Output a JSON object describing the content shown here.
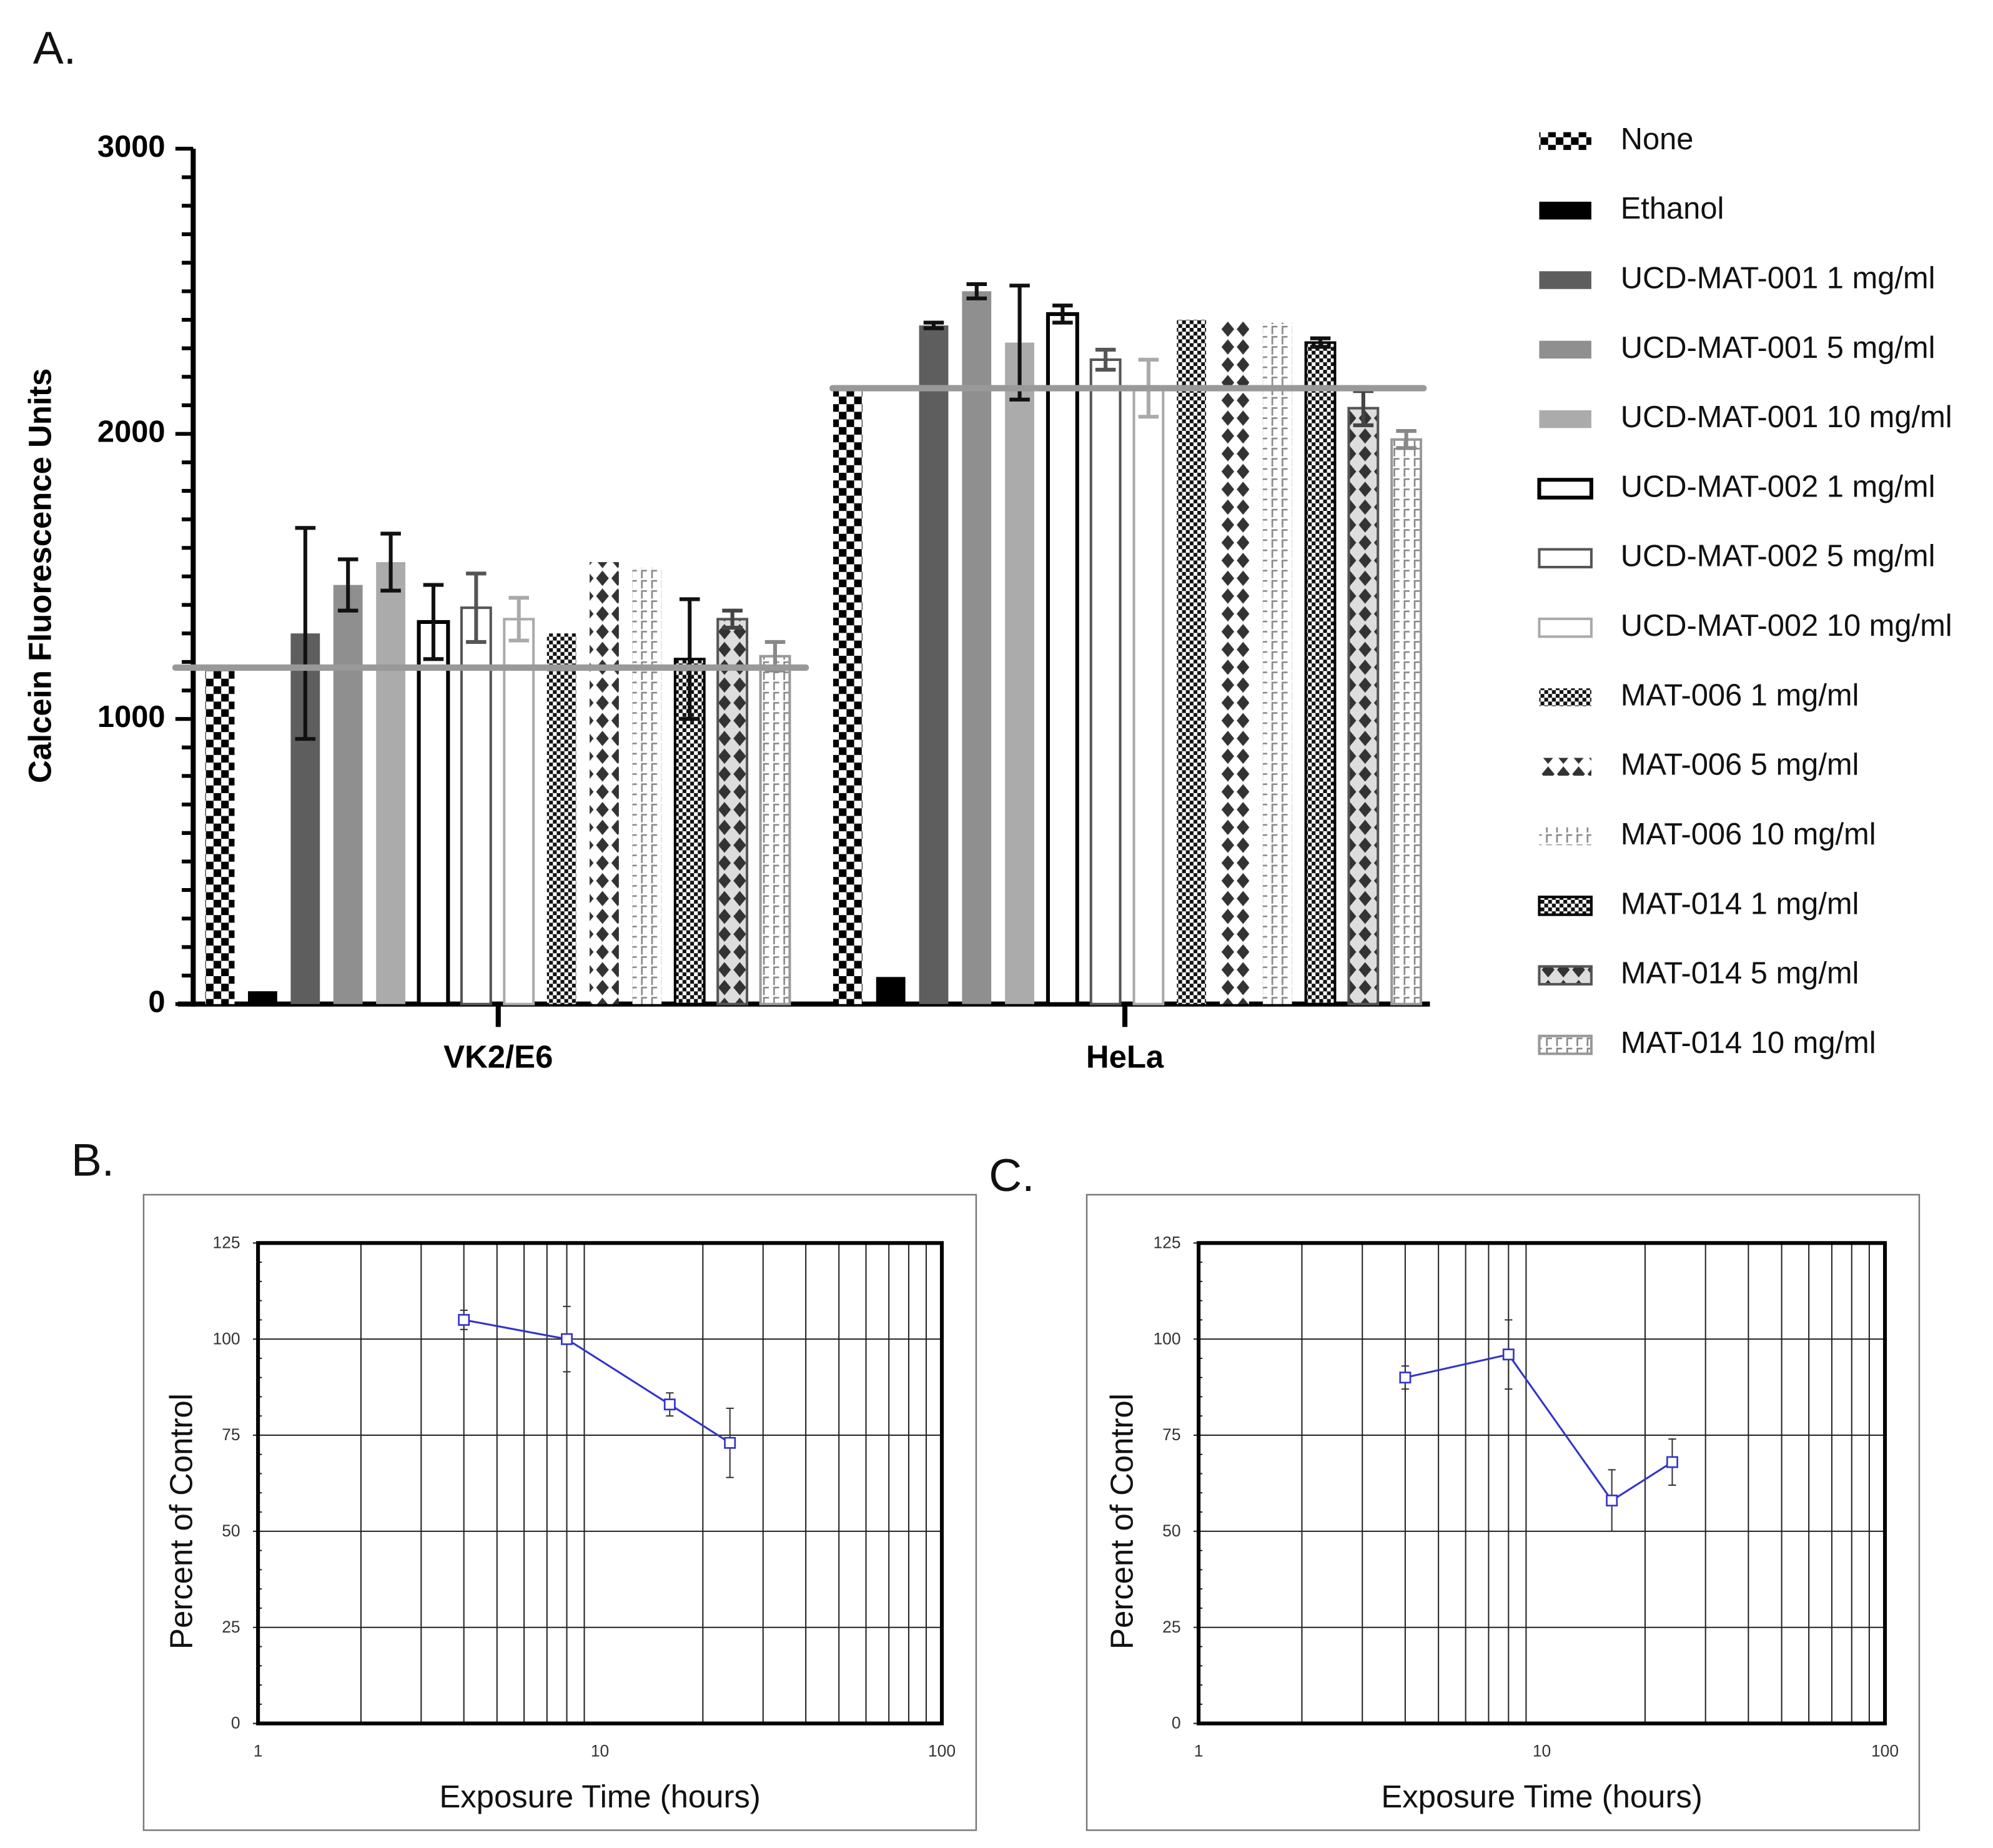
{
  "chart_data": [
    {
      "type": "bar",
      "panel_label": "A.",
      "title": "",
      "ylabel": "Calcein Fluorescence Units",
      "xlabel": "",
      "ylim": [
        0,
        3000
      ],
      "yticks": [
        "0",
        "1000",
        "2000",
        "3000"
      ],
      "categories": [
        "VK2/E6",
        "HeLa"
      ],
      "legend_position": "right",
      "series": [
        {
          "name": "None",
          "values": [
            1190,
            2150
          ],
          "errors": [
            0,
            0
          ],
          "color": "#000000",
          "pattern": "checker"
        },
        {
          "name": "Ethanol",
          "values": [
            45,
            95
          ],
          "errors": [
            0,
            0
          ],
          "color": "#000000",
          "pattern": "solid"
        },
        {
          "name": "UCD-MAT-001 1 mg/ml",
          "values": [
            1300,
            2380
          ],
          "errors": [
            370,
            10
          ],
          "color": "#5e5e5e",
          "pattern": "solid"
        },
        {
          "name": "UCD-MAT-001 5 mg/ml",
          "values": [
            1470,
            2500
          ],
          "errors": [
            90,
            25
          ],
          "color": "#8f8f8f",
          "pattern": "solid"
        },
        {
          "name": "UCD-MAT-001 10 mg/ml",
          "values": [
            1550,
            2320
          ],
          "errors": [
            100,
            200
          ],
          "color": "#ababab",
          "pattern": "solid"
        },
        {
          "name": "UCD-MAT-002 1 mg/ml",
          "values": [
            1340,
            2420
          ],
          "errors": [
            130,
            30
          ],
          "color": "#000000",
          "pattern": "outline"
        },
        {
          "name": "UCD-MAT-002 5 mg/ml",
          "values": [
            1390,
            2260
          ],
          "errors": [
            120,
            35
          ],
          "color": "#555555",
          "pattern": "outline"
        },
        {
          "name": "UCD-MAT-002 10 mg/ml",
          "values": [
            1350,
            2160
          ],
          "errors": [
            75,
            100
          ],
          "color": "#aaaaaa",
          "pattern": "outline"
        },
        {
          "name": "MAT-006 1 mg/ml",
          "values": [
            1300,
            2400
          ],
          "errors": [
            0,
            0
          ],
          "color": "#000000",
          "pattern": "finecheck"
        },
        {
          "name": "MAT-006 5 mg/ml",
          "values": [
            1550,
            2400
          ],
          "errors": [
            0,
            0
          ],
          "color": "#333333",
          "pattern": "diamond"
        },
        {
          "name": "MAT-006 10 mg/ml",
          "values": [
            1530,
            2390
          ],
          "errors": [
            0,
            0
          ],
          "color": "#888888",
          "pattern": "brick"
        },
        {
          "name": "MAT-014 1 mg/ml",
          "values": [
            1210,
            2320
          ],
          "errors": [
            210,
            15
          ],
          "color": "#000000",
          "pattern": "finecheck-outline"
        },
        {
          "name": "MAT-014 5 mg/ml",
          "values": [
            1350,
            2090
          ],
          "errors": [
            30,
            60
          ],
          "color": "#444444",
          "pattern": "diamond-outline"
        },
        {
          "name": "MAT-014 10 mg/ml",
          "values": [
            1220,
            1980
          ],
          "errors": [
            50,
            30
          ],
          "color": "#888888",
          "pattern": "brick-outline"
        }
      ],
      "reference_lines": [
        {
          "category": "VK2/E6",
          "value": 1180,
          "color": "#999999"
        },
        {
          "category": "HeLa",
          "value": 2160,
          "color": "#999999"
        }
      ]
    },
    {
      "type": "line",
      "panel_label": "B.",
      "xlabel": "Exposure Time (hours)",
      "ylabel": "Percent of Control",
      "xscale": "log",
      "xlim": [
        1,
        100
      ],
      "ylim": [
        0,
        125
      ],
      "xticks": [
        "1",
        "10",
        "100"
      ],
      "yticks": [
        "0",
        "25",
        "50",
        "75",
        "100",
        "125"
      ],
      "grid": true,
      "series": [
        {
          "name": "",
          "color": "#3333cc",
          "x": [
            4,
            8,
            16,
            24
          ],
          "y": [
            105,
            100,
            83,
            73
          ],
          "errors": [
            2.5,
            8.5,
            3,
            9
          ]
        }
      ]
    },
    {
      "type": "line",
      "panel_label": "C.",
      "xlabel": "Exposure Time (hours)",
      "ylabel": "Percent of Control",
      "xscale": "log",
      "xlim": [
        1,
        100
      ],
      "ylim": [
        0,
        125
      ],
      "xticks": [
        "1",
        "10",
        "100"
      ],
      "yticks": [
        "0",
        "25",
        "50",
        "75",
        "100",
        "125"
      ],
      "grid": true,
      "series": [
        {
          "name": "",
          "color": "#3333cc",
          "x": [
            4,
            8,
            16,
            24
          ],
          "y": [
            90,
            96,
            58,
            68
          ],
          "errors": [
            3,
            9,
            8,
            6
          ]
        }
      ]
    }
  ]
}
